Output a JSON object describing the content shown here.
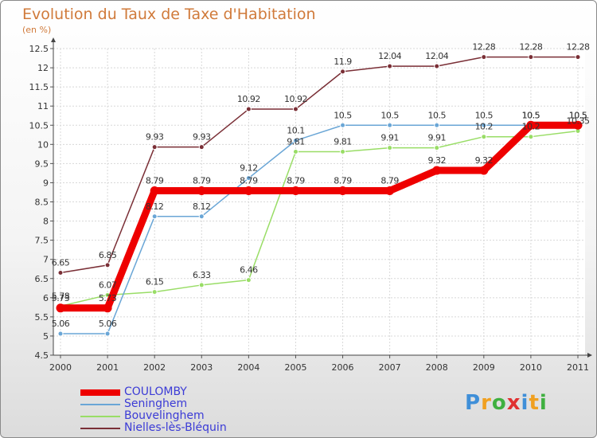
{
  "title": "Evolution du Taux de Taxe d'Habitation",
  "unit": "(en %)",
  "logo": {
    "letters": [
      "P",
      "r",
      "o",
      "x",
      "i",
      "t",
      "i"
    ],
    "colors": [
      "#3f8fd8",
      "#f0a020",
      "#3fb040",
      "#e03030",
      "#3f8fd8",
      "#f0a020",
      "#3fb040"
    ]
  },
  "chart_data": {
    "type": "line",
    "x": [
      "2000",
      "2001",
      "2002",
      "2003",
      "2004",
      "2005",
      "2006",
      "2007",
      "2008",
      "2009",
      "2010",
      "2011"
    ],
    "ylim": [
      4.5,
      12.5
    ],
    "yticks": [
      "4.5",
      "5",
      "5.5",
      "6",
      "6.5",
      "7",
      "7.5",
      "8",
      "8.5",
      "9",
      "9.5",
      "10",
      "10.5",
      "11",
      "11.5",
      "12",
      "12.5"
    ],
    "grid": true,
    "series": [
      {
        "name": "COULOMBY",
        "color": "#ee0000",
        "values": [
          5.73,
          5.73,
          8.79,
          8.79,
          8.79,
          8.79,
          8.79,
          8.79,
          9.32,
          9.32,
          10.5,
          10.5
        ],
        "labels": [
          "5.73",
          "5.73",
          "8.79",
          "8.79",
          "8.79",
          "8.79",
          "8.79",
          "8.79",
          "9.32",
          "9.32",
          "10.5",
          "10.5"
        ]
      },
      {
        "name": "Seninghem",
        "color": "#6aa6d6",
        "values": [
          5.06,
          5.06,
          8.12,
          8.12,
          9.12,
          10.1,
          10.5,
          10.5,
          10.5,
          10.5,
          10.5,
          10.5
        ],
        "labels": [
          "5.06",
          "5.06",
          "8.12",
          "8.12",
          "9.12",
          "10.1",
          "10.5",
          "10.5",
          "10.5",
          "10.5",
          "10.5",
          "10.5"
        ]
      },
      {
        "name": "Bouvelinghem",
        "color": "#99dd66",
        "values": [
          5.78,
          6.07,
          6.15,
          6.33,
          6.46,
          9.81,
          9.81,
          9.91,
          9.91,
          10.2,
          10.2,
          10.35
        ],
        "labels": [
          "5.78",
          "6.07",
          "6.15",
          "6.33",
          "6.46",
          "9.81",
          "9.81",
          "9.91",
          "9.91",
          "10.2",
          "10.2",
          "10.35"
        ]
      },
      {
        "name": "Nielles-lès-Bléquin",
        "color": "#7a2f36",
        "values": [
          6.65,
          6.85,
          9.93,
          9.93,
          10.92,
          10.92,
          11.9,
          12.04,
          12.04,
          12.28,
          12.28,
          12.28
        ],
        "labels": [
          "6.65",
          "6.85",
          "9.93",
          "9.93",
          "10.92",
          "10.92",
          "11.9",
          "12.04",
          "12.04",
          "12.28",
          "12.28",
          "12.28"
        ]
      }
    ]
  }
}
